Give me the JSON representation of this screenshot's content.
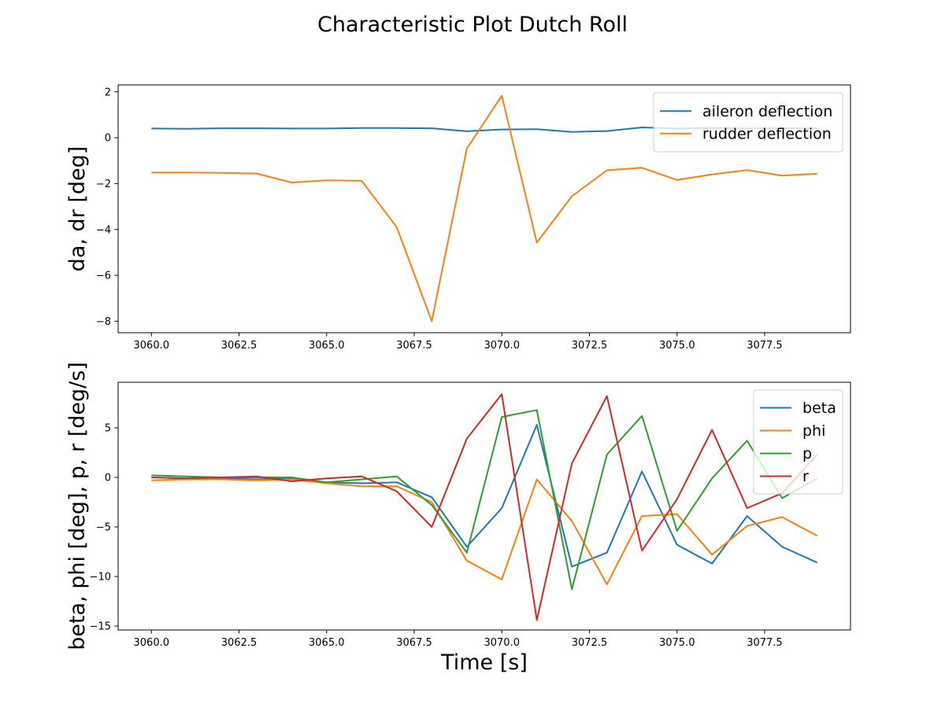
{
  "figure": {
    "title": "Characteristic Plot Dutch Roll"
  },
  "chart_data": [
    {
      "type": "line",
      "ylabel": "da, dr [deg]",
      "xlabel": "",
      "xlim": [
        3059.05,
        3079.95
      ],
      "ylim": [
        -8.5,
        2.3
      ],
      "xticks": [
        3060.0,
        3062.5,
        3065.0,
        3067.5,
        3070.0,
        3072.5,
        3075.0,
        3077.5
      ],
      "xtick_labels": [
        "3060.0",
        "3062.5",
        "3065.0",
        "3067.5",
        "3070.0",
        "3072.5",
        "3075.0",
        "3077.5"
      ],
      "yticks": [
        2,
        0,
        -2,
        -4,
        -6,
        -8
      ],
      "ytick_labels": [
        "2",
        "0",
        "−2",
        "−4",
        "−6",
        "−8"
      ],
      "grid": false,
      "legend_position": "upper right",
      "x": [
        3060,
        3061,
        3062,
        3063,
        3064,
        3065,
        3066,
        3067,
        3068,
        3069,
        3070,
        3071,
        3072,
        3073,
        3074,
        3075,
        3076,
        3077,
        3078,
        3079
      ],
      "series": [
        {
          "name": "aileron deflection",
          "color": "#1f77b4",
          "values": [
            0.4,
            0.39,
            0.41,
            0.41,
            0.4,
            0.4,
            0.42,
            0.42,
            0.41,
            0.28,
            0.36,
            0.37,
            0.25,
            0.29,
            0.45,
            0.4,
            0.42,
            0.4,
            0.41,
            0.41
          ]
        },
        {
          "name": "rudder deflection",
          "color": "#ff7f0e",
          "values": [
            -1.52,
            -1.52,
            -1.53,
            -1.56,
            -1.95,
            -1.86,
            -1.88,
            -3.9,
            -8.0,
            -0.48,
            1.83,
            -4.57,
            -2.55,
            -1.42,
            -1.31,
            -1.84,
            -1.6,
            -1.41,
            -1.65,
            -1.57
          ]
        }
      ]
    },
    {
      "type": "line",
      "ylabel": "beta, phi [deg], p, r [deg/s]",
      "xlabel": "Time [s]",
      "xlim": [
        3059.05,
        3079.95
      ],
      "ylim": [
        -15.4,
        9.6
      ],
      "xticks": [
        3060.0,
        3062.5,
        3065.0,
        3067.5,
        3070.0,
        3072.5,
        3075.0,
        3077.5
      ],
      "xtick_labels": [
        "3060.0",
        "3062.5",
        "3065.0",
        "3067.5",
        "3070.0",
        "3072.5",
        "3075.0",
        "3077.5"
      ],
      "yticks": [
        5,
        0,
        -5,
        -10,
        -15
      ],
      "ytick_labels": [
        "5",
        "0",
        "−5",
        "−10",
        "−15"
      ],
      "grid": false,
      "legend_position": "upper right",
      "x": [
        3060,
        3061,
        3062,
        3063,
        3064,
        3065,
        3066,
        3067,
        3068,
        3069,
        3070,
        3071,
        3072,
        3073,
        3074,
        3075,
        3076,
        3077,
        3078,
        3079
      ],
      "series": [
        {
          "name": "beta",
          "color": "#1f77b4",
          "values": [
            0.0,
            -0.1,
            -0.1,
            -0.2,
            -0.1,
            -0.5,
            -0.6,
            -0.5,
            -2.0,
            -7.0,
            -3.1,
            5.3,
            -9.0,
            -7.6,
            0.6,
            -6.8,
            -8.7,
            -3.9,
            -7.0,
            -8.6
          ]
        },
        {
          "name": "phi",
          "color": "#ff7f0e",
          "values": [
            -0.3,
            -0.2,
            -0.2,
            -0.3,
            -0.2,
            -0.6,
            -0.9,
            -0.9,
            -2.5,
            -8.4,
            -10.3,
            -0.2,
            -4.4,
            -10.8,
            -3.9,
            -3.7,
            -7.8,
            -4.9,
            -4.0,
            -5.9
          ]
        },
        {
          "name": "p",
          "color": "#2ca02c",
          "values": [
            0.2,
            0.1,
            0.0,
            0.0,
            0.0,
            -0.5,
            -0.2,
            0.1,
            -2.8,
            -7.6,
            6.1,
            6.8,
            -11.3,
            2.3,
            6.2,
            -5.4,
            -0.1,
            3.7,
            -2.1,
            -0.1
          ]
        },
        {
          "name": "r",
          "color": "#d62728",
          "values": [
            0.0,
            -0.1,
            0.0,
            0.1,
            -0.4,
            -0.1,
            0.1,
            -1.4,
            -5.0,
            3.9,
            8.4,
            -14.4,
            1.4,
            8.2,
            -7.4,
            -2.2,
            4.8,
            -3.1,
            -1.6,
            2.3
          ]
        }
      ]
    }
  ]
}
